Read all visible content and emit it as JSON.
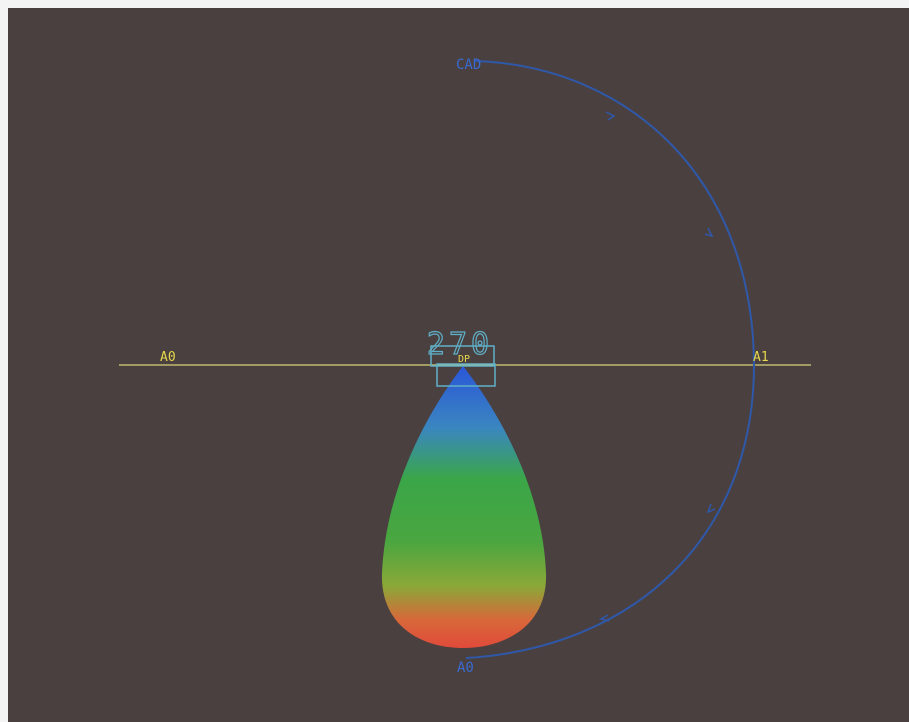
{
  "diagram": {
    "top_label": "CAD",
    "bottom_label": "A0",
    "left_label": "A0",
    "right_label": "A1",
    "center_readout": "270",
    "center_tag": "DP",
    "colors": {
      "background": "#4a4040",
      "axis_line": "#d8d27a",
      "arc": "#2f58a8",
      "readout": "#5fb0c8",
      "label_yellow": "#e6d84a",
      "label_blue": "#3a6ad0",
      "gradient_top": "#2a56d8",
      "gradient_mid": "#3aa648",
      "gradient_low": "#8aa838",
      "gradient_bottom": "#e04a3a"
    }
  }
}
